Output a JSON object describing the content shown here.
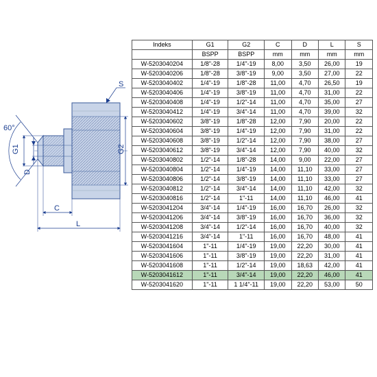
{
  "diagram": {
    "labels": {
      "angle": "60°",
      "g1": "G1",
      "g2": "G2",
      "d": "D",
      "s": "S",
      "c": "C",
      "l": "L"
    },
    "colors": {
      "dim_line": "#1a3d8f",
      "part_fill": "#c8d4e8",
      "part_stroke": "#3a5a9a",
      "hatch": "#7a8db8",
      "centerline": "#4a6ab0"
    }
  },
  "table": {
    "headers1": [
      "Indeks",
      "G1",
      "G2",
      "C",
      "D",
      "L",
      "S"
    ],
    "headers2": [
      "",
      "BSPP",
      "BSPP",
      "mm",
      "mm",
      "mm",
      "mm"
    ],
    "rows": [
      [
        "W-5203040204",
        "1/8\"-28",
        "1/4\"-19",
        "8,00",
        "3,50",
        "26,00",
        "19"
      ],
      [
        "W-5203040206",
        "1/8\"-28",
        "3/8\"-19",
        "9,00",
        "3,50",
        "27,00",
        "22"
      ],
      [
        "W-5203040402",
        "1/4\"-19",
        "1/8\"-28",
        "11,00",
        "4,70",
        "26,50",
        "19"
      ],
      [
        "W-5203040406",
        "1/4\"-19",
        "3/8\"-19",
        "11,00",
        "4,70",
        "31,00",
        "22"
      ],
      [
        "W-5203040408",
        "1/4\"-19",
        "1/2\"-14",
        "11,00",
        "4,70",
        "35,00",
        "27"
      ],
      [
        "W-5203040412",
        "1/4\"-19",
        "3/4\"-14",
        "11,00",
        "4,70",
        "39,00",
        "32"
      ],
      [
        "W-5203040602",
        "3/8\"-19",
        "1/8\"-28",
        "12,00",
        "7,90",
        "20,00",
        "22"
      ],
      [
        "W-5203040604",
        "3/8\"-19",
        "1/4\"-19",
        "12,00",
        "7,90",
        "31,00",
        "22"
      ],
      [
        "W-5203040608",
        "3/8\"-19",
        "1/2\"-14",
        "12,00",
        "7,90",
        "38,00",
        "27"
      ],
      [
        "W-5203040612",
        "3/8\"-19",
        "3/4\"-14",
        "12,00",
        "7,90",
        "40,00",
        "32"
      ],
      [
        "W-5203040802",
        "1/2\"-14",
        "1/8\"-28",
        "14,00",
        "9,00",
        "22,00",
        "27"
      ],
      [
        "W-5203040804",
        "1/2\"-14",
        "1/4\"-19",
        "14,00",
        "11,10",
        "33,00",
        "27"
      ],
      [
        "W-5203040806",
        "1/2\"-14",
        "3/8\"-19",
        "14,00",
        "11,10",
        "33,00",
        "27"
      ],
      [
        "W-5203040812",
        "1/2\"-14",
        "3/4\"-14",
        "14,00",
        "11,10",
        "42,00",
        "32"
      ],
      [
        "W-5203040816",
        "1/2\"-14",
        "1\"-11",
        "14,00",
        "11,10",
        "46,00",
        "41"
      ],
      [
        "W-5203041204",
        "3/4\"-14",
        "1/4\"-19",
        "16,00",
        "16,70",
        "26,00",
        "32"
      ],
      [
        "W-5203041206",
        "3/4\"-14",
        "3/8\"-19",
        "16,00",
        "16,70",
        "36,00",
        "32"
      ],
      [
        "W-5203041208",
        "3/4\"-14",
        "1/2\"-14",
        "16,00",
        "16,70",
        "40,00",
        "32"
      ],
      [
        "W-5203041216",
        "3/4\"-14",
        "1\"-11",
        "16,00",
        "16,70",
        "48,00",
        "41"
      ],
      [
        "W-5203041604",
        "1\"-11",
        "1/4\"-19",
        "19,00",
        "22,20",
        "30,00",
        "41"
      ],
      [
        "W-5203041606",
        "1\"-11",
        "3/8\"-19",
        "19,00",
        "22,20",
        "31,00",
        "41"
      ],
      [
        "W-5203041608",
        "1\"-11",
        "1/2\"-14",
        "19,00",
        "18,63",
        "42,00",
        "41"
      ],
      [
        "W-5203041612",
        "1\"-11",
        "3/4\"-14",
        "19,00",
        "22,20",
        "46,00",
        "41"
      ],
      [
        "W-5203041620",
        "1\"-11",
        "1 1/4\"-11",
        "19,00",
        "22,20",
        "53,00",
        "50"
      ]
    ],
    "highlight_row": 22
  }
}
